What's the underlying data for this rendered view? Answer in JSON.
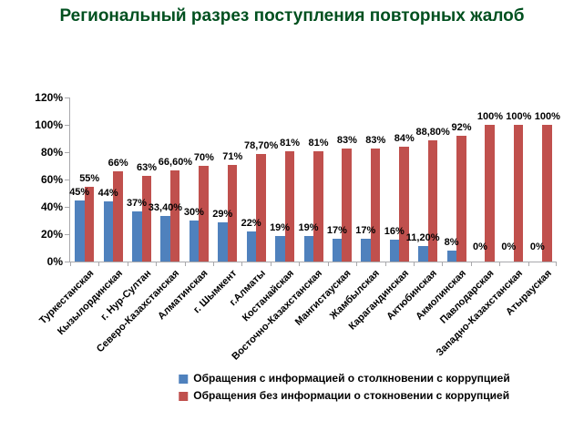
{
  "title": "Региональный разрез поступления повторных жалоб",
  "colors": {
    "title_green": "#00501F",
    "axis_gray": "#A9A9AC",
    "series_blue": "#4F81BD",
    "series_red": "#C0504D"
  },
  "chart_data": {
    "type": "bar",
    "title": "Региональный разрез поступления повторных жалоб",
    "xlabel": "",
    "ylabel": "",
    "ylim": [
      0,
      120
    ],
    "ytick_step": 20,
    "ytick_labels": [
      "0%",
      "20%",
      "40%",
      "60%",
      "80%",
      "100%",
      "120%"
    ],
    "grid": false,
    "legend_position": "bottom",
    "categories": [
      "Туркестанская",
      "Кызылординская",
      "г. Нур-Султан",
      "Северо-Казахстанская",
      "Алматинская",
      "г. Шымкент",
      "г.Алматы",
      "Костанайская",
      "Восточно-Казахстанская",
      "Мангистауская",
      "Жамбылская",
      "Карагандинская",
      "Актюбинская",
      "Акмолинская",
      "Павлодарская",
      "Западно-Казахстанская",
      "Атырауская"
    ],
    "series": [
      {
        "name": "Обращения с информацией о столкновении с коррупцией",
        "color": "#4F81BD",
        "values": [
          45,
          44,
          37,
          33.4,
          30,
          29,
          22,
          19,
          19,
          17,
          17,
          16,
          11.2,
          8,
          0,
          0,
          0
        ],
        "labels": [
          "45%",
          "44%",
          "37%",
          "33,40%",
          "30%",
          "29%",
          "22%",
          "19%",
          "19%",
          "17%",
          "17%",
          "16%",
          "11,20%",
          "8%",
          "0%",
          "0%",
          "0%"
        ]
      },
      {
        "name": "Обращения без информации о стокновении с коррупцией",
        "color": "#C0504D",
        "values": [
          55,
          66,
          63,
          66.6,
          70,
          71,
          78.7,
          81,
          81,
          83,
          83,
          84,
          88.8,
          92,
          100,
          100,
          100
        ],
        "labels": [
          "55%",
          "66%",
          "63%",
          "66,60%",
          "70%",
          "71%",
          "78,70%",
          "81%",
          "81%",
          "83%",
          "83%",
          "84%",
          "88,80%",
          "92%",
          "100%",
          "100%",
          "100%"
        ]
      }
    ]
  }
}
